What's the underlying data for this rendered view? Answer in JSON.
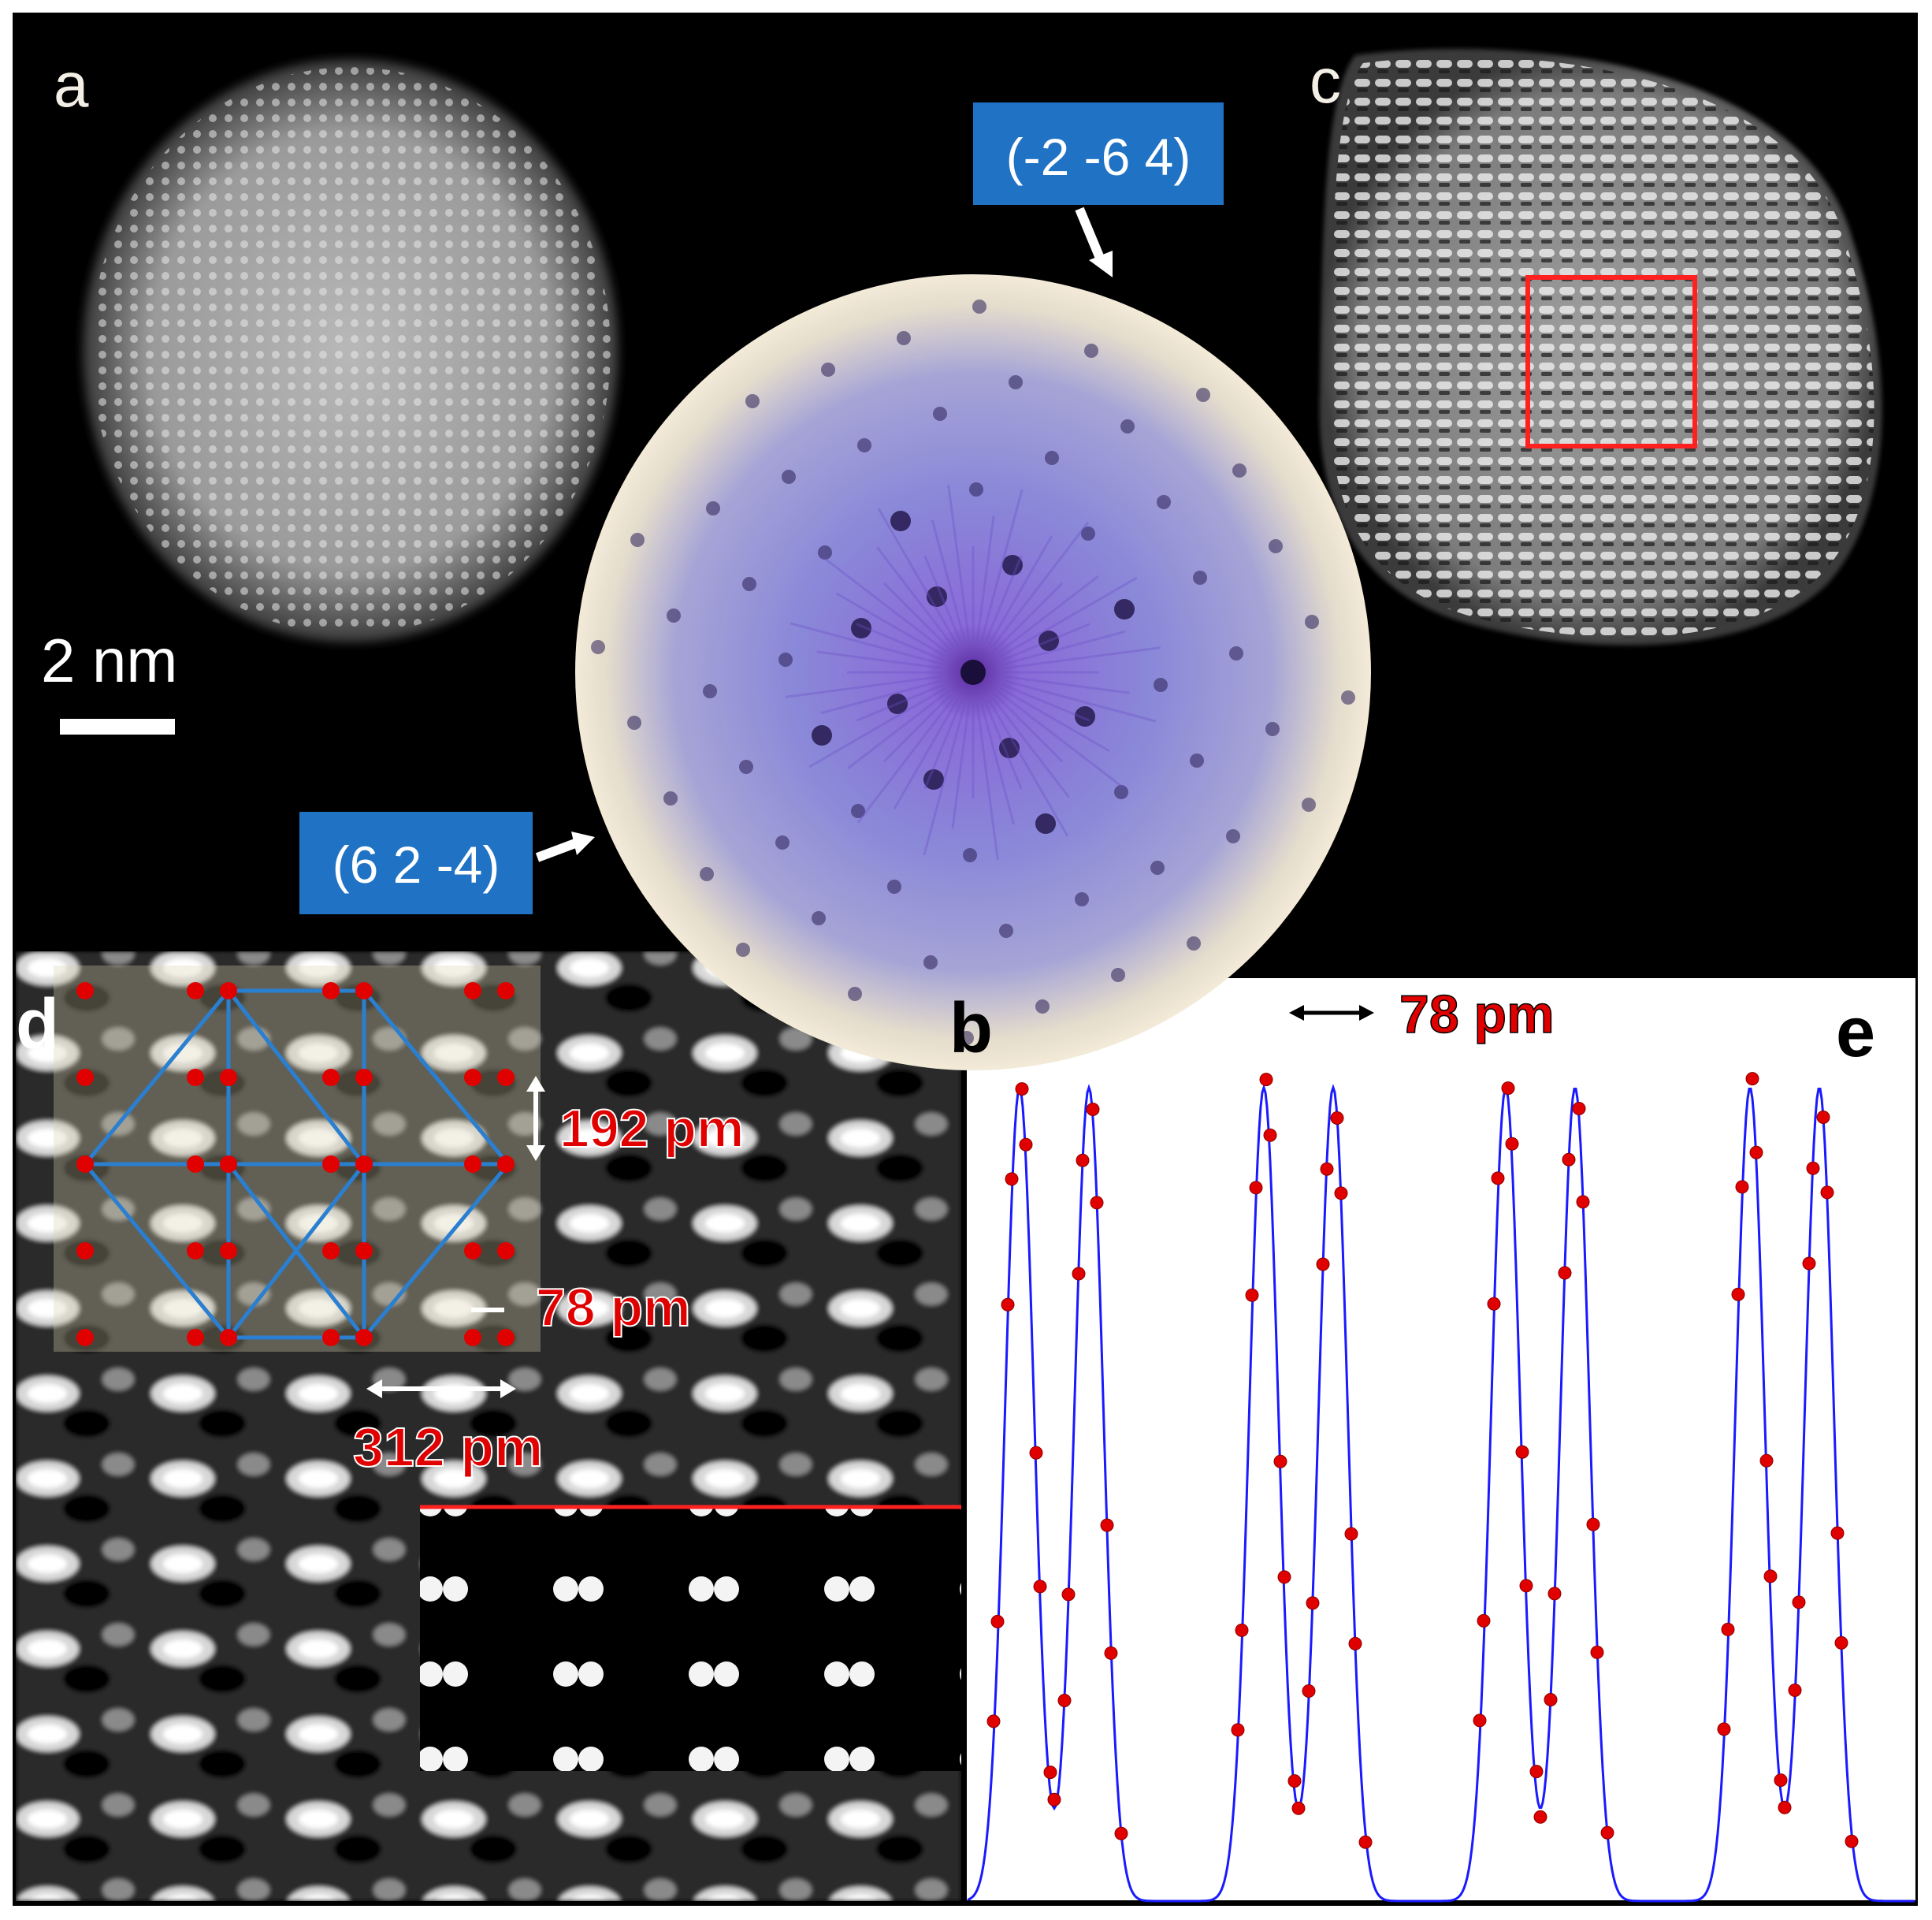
{
  "panels": {
    "a": {
      "label": "a",
      "scale_bar_label": "2 nm"
    },
    "b": {
      "label": "b",
      "reflection_top": "(-2 -6 4)",
      "reflection_left": "(6 2 -4)"
    },
    "c": {
      "label": "c"
    },
    "d": {
      "label": "d",
      "dim_vertical": "192 pm",
      "dim_pair": "78 pm",
      "dim_horizontal": "312 pm"
    },
    "e": {
      "label": "e",
      "dim_peak_split": "78 pm",
      "profile_pairs": 4
    }
  },
  "colors": {
    "background": "#000000",
    "label_box": "#1f72c4",
    "annotation_red": "#e00000",
    "lattice_line": "#2a7fd0",
    "profile_line": "#1a1aff",
    "profile_point": "#e00000",
    "fft_center": "#5a2aa0",
    "fft_ring": "#f3ead8"
  }
}
